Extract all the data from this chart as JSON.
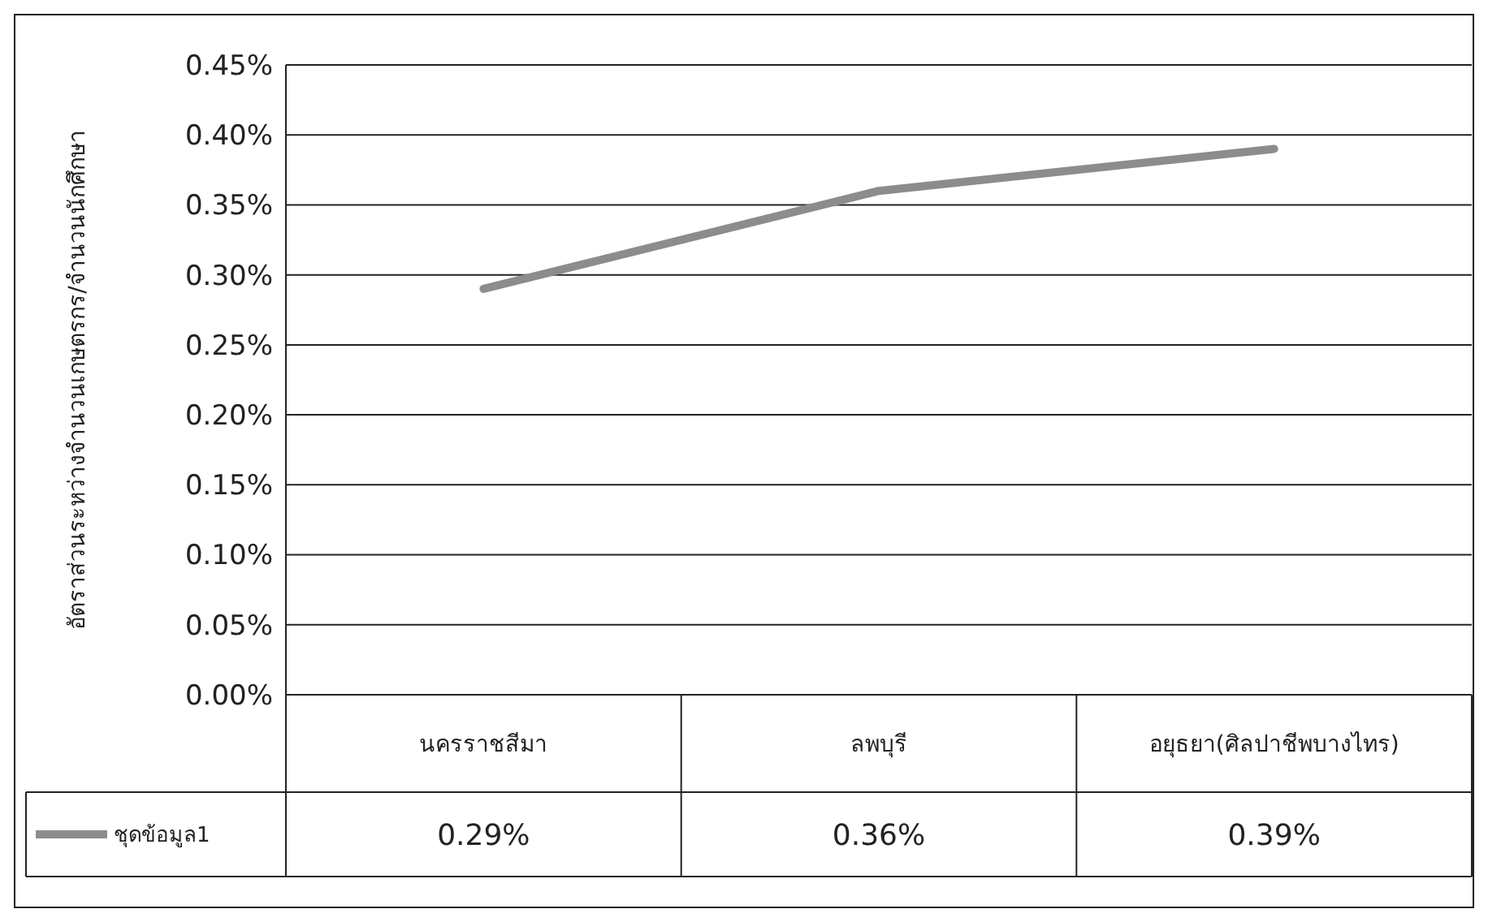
{
  "chart_data": {
    "type": "line",
    "ylabel": "อัตราส่วนระหว่างจำนวนเกษตรกร/จำนวนนักศึกษา",
    "categories": [
      "นครราชสีมา",
      "ลพบุรี",
      "อยุธยา(ศิลปาชีพบางไทร)"
    ],
    "series": [
      {
        "name": "ชุดข้อมูล1",
        "color": "#8c8c8c",
        "values": [
          0.29,
          0.36,
          0.39
        ]
      }
    ],
    "ylim": [
      0,
      0.45
    ],
    "yticks": [
      {
        "value": 0,
        "label": "0.00%"
      },
      {
        "value": 0.05,
        "label": "0.05%"
      },
      {
        "value": 0.1,
        "label": "0.10%"
      },
      {
        "value": 0.15,
        "label": "0.15%"
      },
      {
        "value": 0.2,
        "label": "0.20%"
      },
      {
        "value": 0.25,
        "label": "0.25%"
      },
      {
        "value": 0.3,
        "label": "0.30%"
      },
      {
        "value": 0.35,
        "label": "0.35%"
      },
      {
        "value": 0.4,
        "label": "0.40%"
      },
      {
        "value": 0.45,
        "label": "0.45%"
      }
    ],
    "value_labels": [
      "0.29%",
      "0.36%",
      "0.39%"
    ],
    "grid": "y",
    "legend": "bottom",
    "marker": "none",
    "line_style": "solid"
  }
}
